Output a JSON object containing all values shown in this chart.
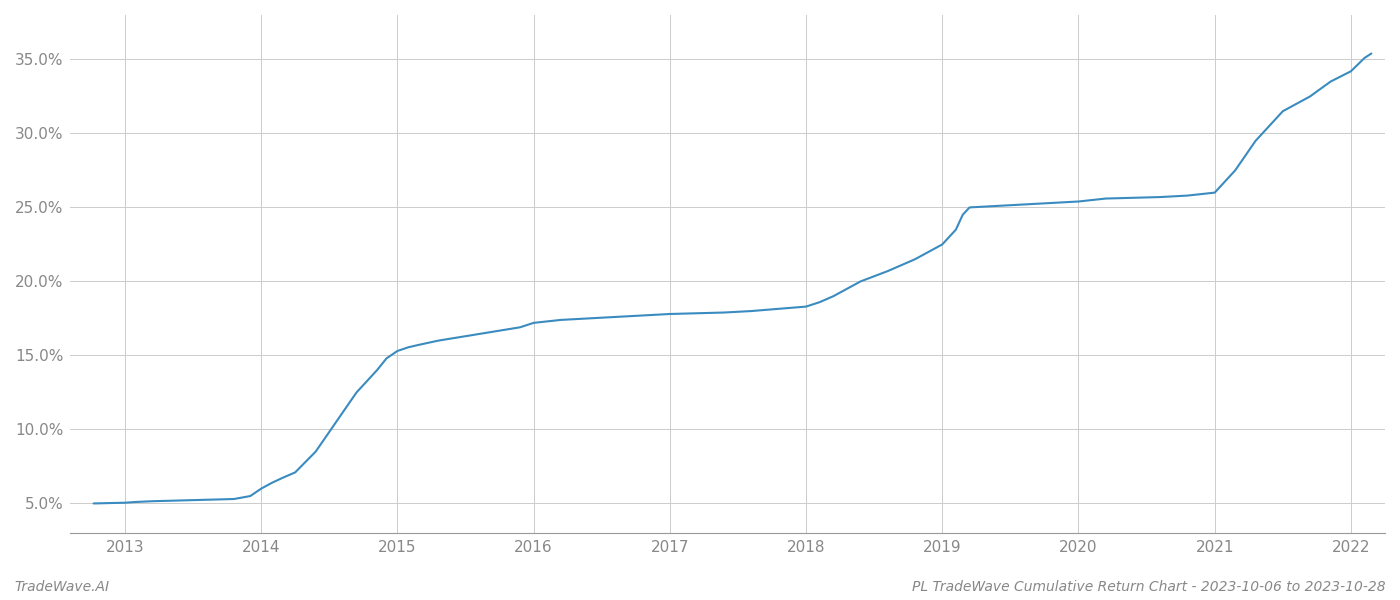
{
  "x": [
    2012.77,
    2013.0,
    2013.08,
    2013.2,
    2013.4,
    2013.6,
    2013.8,
    2013.92,
    2014.0,
    2014.08,
    2014.15,
    2014.25,
    2014.4,
    2014.55,
    2014.7,
    2014.85,
    2014.92,
    2015.0,
    2015.08,
    2015.15,
    2015.3,
    2015.5,
    2015.7,
    2015.9,
    2016.0,
    2016.2,
    2016.4,
    2016.6,
    2016.8,
    2017.0,
    2017.2,
    2017.4,
    2017.6,
    2017.8,
    2018.0,
    2018.1,
    2018.2,
    2018.4,
    2018.6,
    2018.8,
    2019.0,
    2019.1,
    2019.15,
    2019.2,
    2019.4,
    2019.6,
    2019.8,
    2020.0,
    2020.1,
    2020.2,
    2020.4,
    2020.6,
    2020.8,
    2021.0,
    2021.15,
    2021.3,
    2021.5,
    2021.7,
    2021.85,
    2022.0,
    2022.1,
    2022.15
  ],
  "y": [
    5.0,
    5.05,
    5.1,
    5.15,
    5.2,
    5.25,
    5.3,
    5.5,
    6.0,
    6.4,
    6.7,
    7.1,
    8.5,
    10.5,
    12.5,
    14.0,
    14.8,
    15.3,
    15.55,
    15.7,
    16.0,
    16.3,
    16.6,
    16.9,
    17.2,
    17.4,
    17.5,
    17.6,
    17.7,
    17.8,
    17.85,
    17.9,
    18.0,
    18.15,
    18.3,
    18.6,
    19.0,
    20.0,
    20.7,
    21.5,
    22.5,
    23.5,
    24.5,
    25.0,
    25.1,
    25.2,
    25.3,
    25.4,
    25.5,
    25.6,
    25.65,
    25.7,
    25.8,
    26.0,
    27.5,
    29.5,
    31.5,
    32.5,
    33.5,
    34.2,
    35.1,
    35.4
  ],
  "line_color": "#3a8bbf",
  "line_width": 1.5,
  "bg_color": "#ffffff",
  "grid_color": "#cccccc",
  "title": "PL TradeWave Cumulative Return Chart - 2023-10-06 to 2023-10-28",
  "footer_left": "TradeWave.AI",
  "ylim": [
    3.0,
    38.0
  ],
  "xlim": [
    2012.6,
    2022.25
  ],
  "yticks": [
    5.0,
    10.0,
    15.0,
    20.0,
    25.0,
    30.0,
    35.0
  ],
  "xticks": [
    2013,
    2014,
    2015,
    2016,
    2017,
    2018,
    2019,
    2020,
    2021,
    2022
  ],
  "tick_label_color": "#888888",
  "footer_color": "#888888",
  "title_color": "#888888",
  "tick_label_fontsize": 11,
  "footer_fontsize": 10
}
